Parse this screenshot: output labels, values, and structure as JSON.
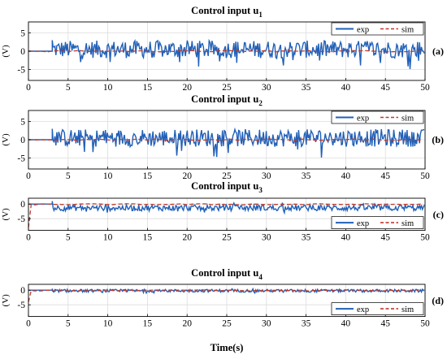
{
  "chart_data": [
    {
      "type": "line",
      "panel_label": "(a)",
      "title": "Control input u",
      "title_sub": "1",
      "ylabel": "(V)",
      "xlabel": "",
      "xlim": [
        0,
        50
      ],
      "ylim": [
        -8,
        8
      ],
      "xticks": [
        0,
        5,
        10,
        15,
        20,
        25,
        30,
        35,
        40,
        45,
        50
      ],
      "yticks": [
        -5,
        0,
        5
      ],
      "grid": true,
      "legend_position": "top-right",
      "series": [
        {
          "name": "exp",
          "color": "#2060b8",
          "style": "solid",
          "start_value": 0,
          "onset_time": 3,
          "spike_value": 3,
          "mean_after_onset": 0.5,
          "range_after_onset": [
            -5,
            3
          ]
        },
        {
          "name": "sim",
          "color": "#c0392b",
          "style": "dashed",
          "start_value": 0,
          "mean_after_onset": 0
        }
      ]
    },
    {
      "type": "line",
      "panel_label": "(b)",
      "title": "Control input u",
      "title_sub": "2",
      "ylabel": "(V)",
      "xlabel": "",
      "xlim": [
        0,
        50
      ],
      "ylim": [
        -8,
        8
      ],
      "xticks": [
        0,
        5,
        10,
        15,
        20,
        25,
        30,
        35,
        40,
        45,
        50
      ],
      "yticks": [
        -5,
        0,
        5
      ],
      "grid": true,
      "legend_position": "top-right",
      "series": [
        {
          "name": "exp",
          "color": "#2060b8",
          "style": "solid",
          "start_value": 0,
          "onset_time": 3,
          "spike_value": 3,
          "mean_after_onset": 0.5,
          "range_after_onset": [
            -5,
            3
          ]
        },
        {
          "name": "sim",
          "color": "#c0392b",
          "style": "dashed",
          "start_value": 0,
          "mean_after_onset": 0
        }
      ]
    },
    {
      "type": "line",
      "panel_label": "(c)",
      "title": "Control input u",
      "title_sub": "3",
      "ylabel": "(V)",
      "xlabel": "",
      "xlim": [
        0,
        50
      ],
      "ylim": [
        -9,
        2
      ],
      "xticks": [
        0,
        5,
        10,
        15,
        20,
        25,
        30,
        35,
        40,
        45,
        50
      ],
      "yticks": [
        -5,
        0
      ],
      "grid": true,
      "legend_position": "bottom-right",
      "series": [
        {
          "name": "exp",
          "color": "#2060b8",
          "style": "solid",
          "start_value": 0,
          "onset_time": 3,
          "spike_value": 1,
          "mean_after_onset": -1.3,
          "range_after_onset": [
            -3,
            0.5
          ]
        },
        {
          "name": "sim",
          "color": "#c0392b",
          "style": "dashed",
          "start_value": -8,
          "mean_after_onset": -0.1
        }
      ]
    },
    {
      "type": "line",
      "panel_label": "(d)",
      "title": "Control input u",
      "title_sub": "4",
      "ylabel": "(V)",
      "xlabel": "Time(s)",
      "xlim": [
        0,
        50
      ],
      "ylim": [
        -9,
        2
      ],
      "xticks": [
        0,
        5,
        10,
        15,
        20,
        25,
        30,
        35,
        40,
        45,
        50
      ],
      "yticks": [
        -5,
        0
      ],
      "grid": true,
      "legend_position": "bottom-right",
      "series": [
        {
          "name": "exp",
          "color": "#2060b8",
          "style": "solid",
          "start_value": 0,
          "onset_time": 3,
          "spike_value": 0.5,
          "mean_after_onset": -0.2,
          "range_after_onset": [
            -1,
            0.6
          ]
        },
        {
          "name": "sim",
          "color": "#c0392b",
          "style": "dashed",
          "start_value": -4,
          "mean_after_onset": -0.1
        }
      ]
    }
  ]
}
